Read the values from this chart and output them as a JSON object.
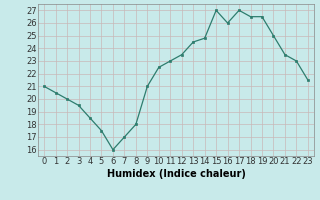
{
  "x": [
    0,
    1,
    2,
    3,
    4,
    5,
    6,
    7,
    8,
    9,
    10,
    11,
    12,
    13,
    14,
    15,
    16,
    17,
    18,
    19,
    20,
    21,
    22,
    23
  ],
  "y": [
    21,
    20.5,
    20,
    19.5,
    18.5,
    17.5,
    16,
    17,
    18,
    21,
    22.5,
    23,
    23.5,
    24.5,
    24.8,
    27,
    26,
    27,
    26.5,
    26.5,
    25,
    23.5,
    23,
    21.5
  ],
  "xlabel": "Humidex (Indice chaleur)",
  "ylim": [
    15.5,
    27.5
  ],
  "xlim": [
    -0.5,
    23.5
  ],
  "yticks": [
    16,
    17,
    18,
    19,
    20,
    21,
    22,
    23,
    24,
    25,
    26,
    27
  ],
  "xticks": [
    0,
    1,
    2,
    3,
    4,
    5,
    6,
    7,
    8,
    9,
    10,
    11,
    12,
    13,
    14,
    15,
    16,
    17,
    18,
    19,
    20,
    21,
    22,
    23
  ],
  "line_color": "#2e7d6e",
  "marker_color": "#2e7d6e",
  "bg_color": "#c8eaea",
  "grid_color": "#c8b8b8",
  "label_fontsize": 7.0,
  "tick_fontsize": 6.0
}
